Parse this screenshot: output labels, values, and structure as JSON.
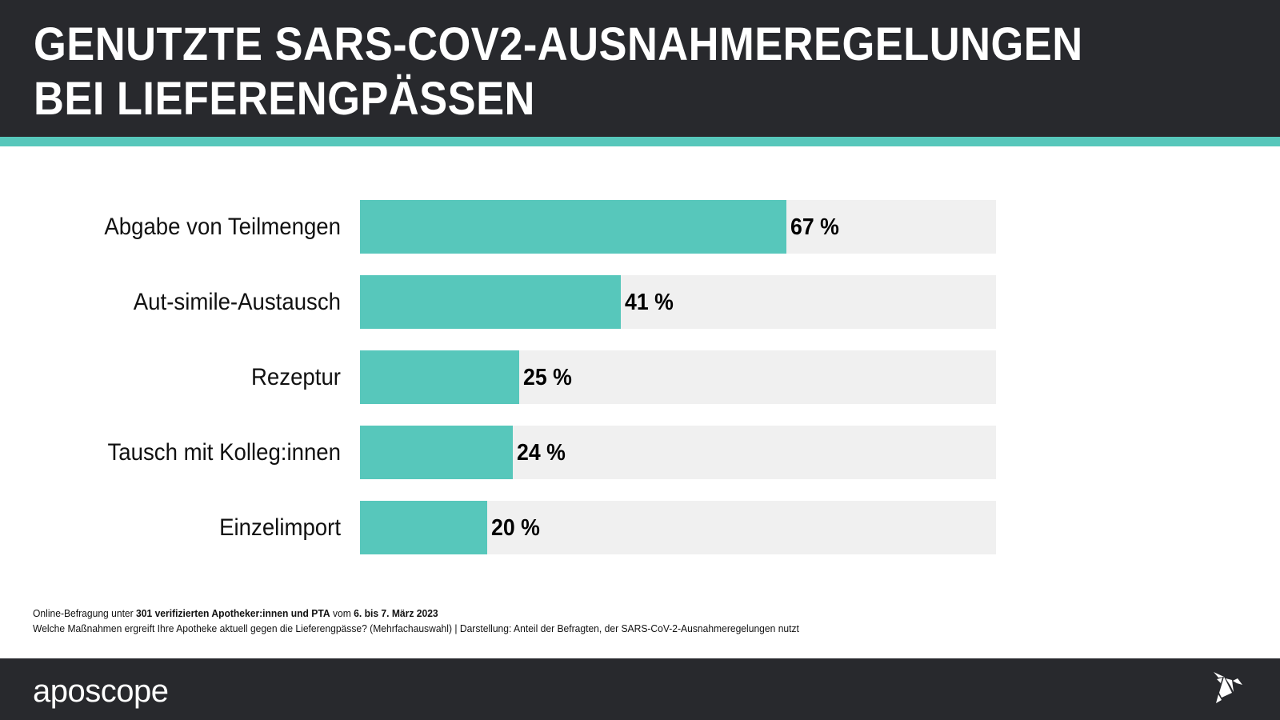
{
  "header": {
    "title_lines": [
      "GENUTZTE SARS-COV2-AUSNAHMEREGELUNGEN",
      "BEI LIEFERENGPÄSSEN"
    ]
  },
  "colors": {
    "dark": "#28292d",
    "accent": "#57c7bb",
    "track": "#f0f0f0"
  },
  "chart_data": {
    "type": "bar",
    "orientation": "horizontal",
    "title": "GENUTZTE SARS-COV2-AUSNAHMEREGELUNGEN BEI LIEFERENGPÄSSEN",
    "categories": [
      "Abgabe von Teilmengen",
      "Aut-simile-Austausch",
      "Rezeptur",
      "Tausch mit Kolleg:innen",
      "Einzelimport"
    ],
    "values": [
      67,
      41,
      25,
      24,
      20
    ],
    "value_labels": [
      "67 %",
      "41 %",
      "25 %",
      "24 %",
      "20 %"
    ],
    "unit": "%",
    "xlim": [
      0,
      100
    ],
    "xlabel": "",
    "ylabel": "",
    "grid": false,
    "legend": "none"
  },
  "notes": {
    "line1": {
      "prefix": "Online-Befragung unter ",
      "bold1": "301 verifizierten Apotheker:innen und PTA",
      "middle": " vom ",
      "bold2": "6. bis 7. März 2023"
    },
    "line2": "Welche Maßnahmen ergreift Ihre Apotheke aktuell gegen die Lieferengpässe? (Mehrfachauswahl) | Darstellung: Anteil der Befragten, der SARS-CoV-2-Ausnahmeregelungen nutzt"
  },
  "footer": {
    "logo_text": "aposcope",
    "bird_icon": "origami-bird-icon"
  }
}
